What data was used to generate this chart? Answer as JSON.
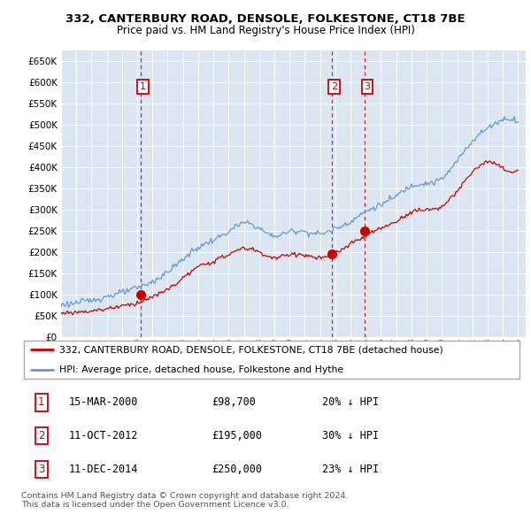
{
  "title": "332, CANTERBURY ROAD, DENSOLE, FOLKESTONE, CT18 7BE",
  "subtitle": "Price paid vs. HM Land Registry's House Price Index (HPI)",
  "bg_color": "#dce6f1",
  "red_color": "#cc0000",
  "blue_color": "#6699cc",
  "ylim_min": 0,
  "ylim_max": 675000,
  "yticks": [
    0,
    50000,
    100000,
    150000,
    200000,
    250000,
    300000,
    350000,
    400000,
    450000,
    500000,
    550000,
    600000,
    650000
  ],
  "xmin_year": 1995.0,
  "xmax_year": 2025.5,
  "xticks": [
    1995,
    1996,
    1997,
    1998,
    1999,
    2000,
    2001,
    2002,
    2003,
    2004,
    2005,
    2006,
    2007,
    2008,
    2009,
    2010,
    2011,
    2012,
    2013,
    2014,
    2015,
    2016,
    2017,
    2018,
    2019,
    2020,
    2021,
    2022,
    2023,
    2024,
    2025
  ],
  "transaction_markers": [
    {
      "num": "1",
      "year": 2000.21,
      "price": 98700
    },
    {
      "num": "2",
      "year": 2012.78,
      "price": 195000
    },
    {
      "num": "3",
      "year": 2014.95,
      "price": 250000
    }
  ],
  "legend_entries": [
    {
      "label": "332, CANTERBURY ROAD, DENSOLE, FOLKESTONE, CT18 7BE (detached house)",
      "color": "#cc0000"
    },
    {
      "label": "HPI: Average price, detached house, Folkestone and Hythe",
      "color": "#6699cc"
    }
  ],
  "table_rows": [
    {
      "num": "1",
      "date": "15-MAR-2000",
      "price": "£98,700",
      "pct": "20% ↓ HPI"
    },
    {
      "num": "2",
      "date": "11-OCT-2012",
      "price": "£195,000",
      "pct": "30% ↓ HPI"
    },
    {
      "num": "3",
      "date": "11-DEC-2014",
      "price": "£250,000",
      "pct": "23% ↓ HPI"
    }
  ],
  "footer": "Contains HM Land Registry data © Crown copyright and database right 2024.\nThis data is licensed under the Open Government Licence v3.0."
}
